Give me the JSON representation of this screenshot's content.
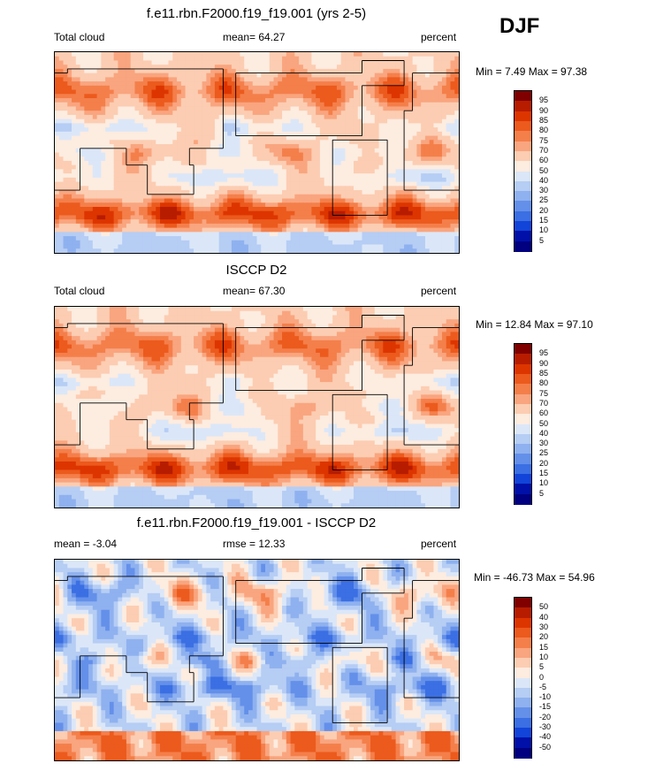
{
  "season": "DJF",
  "panels": [
    {
      "title": "f.e11.rbn.F2000.f19_f19.001 (yrs 2-5)",
      "left_label": "Total cloud",
      "center_label": "mean=  64.27",
      "units": "percent",
      "minmax": "Min =   7.49 Max =  97.38",
      "levels": [
        "95",
        "90",
        "85",
        "80",
        "75",
        "70",
        "60",
        "50",
        "40",
        "30",
        "25",
        "20",
        "15",
        "10",
        "5"
      ],
      "colors": [
        "#800000",
        "#b71c00",
        "#dd3500",
        "#ec5a1d",
        "#f47f4b",
        "#f9a57f",
        "#fccdb2",
        "#fdece0",
        "#dbe7f8",
        "#b6cdf4",
        "#8fb1ef",
        "#6490ea",
        "#3b6fe3",
        "#1244d9",
        "#0010a8",
        "#000080"
      ],
      "fill_mode": "total"
    },
    {
      "title": "ISCCP D2",
      "left_label": "Total cloud",
      "center_label": "mean=  67.30",
      "units": "percent",
      "minmax": "Min =  12.84 Max =  97.10",
      "levels": [
        "95",
        "90",
        "85",
        "80",
        "75",
        "70",
        "60",
        "50",
        "40",
        "30",
        "25",
        "20",
        "15",
        "10",
        "5"
      ],
      "colors": [
        "#800000",
        "#b71c00",
        "#dd3500",
        "#ec5a1d",
        "#f47f4b",
        "#f9a57f",
        "#fccdb2",
        "#fdece0",
        "#dbe7f8",
        "#b6cdf4",
        "#8fb1ef",
        "#6490ea",
        "#3b6fe3",
        "#1244d9",
        "#0010a8",
        "#000080"
      ],
      "fill_mode": "total"
    },
    {
      "title": "f.e11.rbn.F2000.f19_f19.001 - ISCCP D2",
      "left_label": "mean =  -3.04",
      "center_label": "rmse =  12.33",
      "units": "percent",
      "minmax": "Min = -46.73 Max =  54.96",
      "levels": [
        "50",
        "40",
        "30",
        "20",
        "15",
        "10",
        "5",
        "0",
        "-5",
        "-10",
        "-15",
        "-20",
        "-30",
        "-40",
        "-50"
      ],
      "colors": [
        "#800000",
        "#b71c00",
        "#dd3500",
        "#ec5a1d",
        "#f47f4b",
        "#f9a57f",
        "#fccdb2",
        "#fdece0",
        "#dbe7f8",
        "#b6cdf4",
        "#8fb1ef",
        "#6490ea",
        "#3b6fe3",
        "#1244d9",
        "#0010a8",
        "#000080"
      ],
      "fill_mode": "diff"
    }
  ],
  "chart_data": [
    {
      "type": "heatmap",
      "title": "f.e11.rbn.F2000.f19_f19.001 (yrs 2-5)",
      "variable": "Total cloud",
      "units": "percent",
      "season": "DJF",
      "mean": 64.27,
      "min": 7.49,
      "max": 97.38,
      "contour_levels": [
        5,
        10,
        15,
        20,
        25,
        30,
        40,
        50,
        60,
        70,
        75,
        80,
        85,
        90,
        95
      ]
    },
    {
      "type": "heatmap",
      "title": "ISCCP D2",
      "variable": "Total cloud",
      "units": "percent",
      "season": "DJF",
      "mean": 67.3,
      "min": 12.84,
      "max": 97.1,
      "contour_levels": [
        5,
        10,
        15,
        20,
        25,
        30,
        40,
        50,
        60,
        70,
        75,
        80,
        85,
        90,
        95
      ]
    },
    {
      "type": "heatmap",
      "title": "f.e11.rbn.F2000.f19_f19.001 - ISCCP D2",
      "variable": "Total cloud difference",
      "units": "percent",
      "season": "DJF",
      "mean": -3.04,
      "rmse": 12.33,
      "min": -46.73,
      "max": 54.96,
      "contour_levels": [
        -50,
        -40,
        -30,
        -20,
        -15,
        -10,
        -5,
        0,
        5,
        10,
        15,
        20,
        30,
        40,
        50
      ]
    }
  ]
}
